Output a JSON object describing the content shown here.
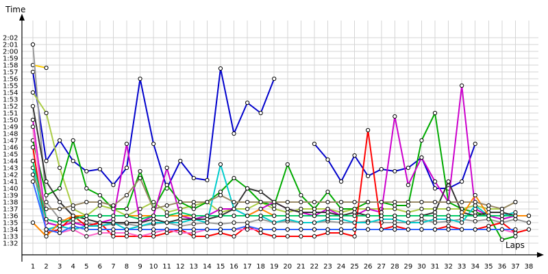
{
  "chart_data": {
    "type": "line",
    "title": "",
    "ylabel": "Time",
    "xlabel": "Laps",
    "ylim": [
      92,
      122
    ],
    "xlim": [
      1,
      38
    ],
    "x_ticks": [
      1,
      2,
      3,
      4,
      5,
      6,
      7,
      8,
      9,
      10,
      11,
      12,
      13,
      14,
      15,
      16,
      17,
      18,
      19,
      20,
      21,
      22,
      23,
      24,
      25,
      26,
      27,
      28,
      29,
      30,
      31,
      32,
      33,
      34,
      35,
      36,
      37,
      38
    ],
    "x_tick_labels": [
      "1",
      "2",
      "3",
      "4",
      "5",
      "6",
      "7",
      "8",
      "9",
      "10",
      "11",
      "12",
      "13",
      "14",
      "15",
      "16",
      "17",
      "18",
      "19",
      "20",
      "21",
      "22",
      "23",
      "24",
      "25",
      "26",
      "27",
      "28",
      "29",
      "30",
      "31",
      "32",
      "33",
      "34",
      "35",
      "36",
      "37",
      "38"
    ],
    "y_ticks": [
      92,
      93,
      94,
      95,
      96,
      97,
      98,
      99,
      100,
      101,
      102,
      103,
      104,
      105,
      106,
      107,
      108,
      109,
      110,
      111,
      112,
      113,
      114,
      115,
      116,
      117,
      118,
      119,
      120,
      121,
      122
    ],
    "y_tick_labels": [
      "1:32",
      "1:33",
      "1:34",
      "1:35",
      "1:36",
      "1:37",
      "1:38",
      "1:39",
      "1:40",
      "1:41",
      "1:42",
      "1:43",
      "1:44",
      "1:45",
      "1:46",
      "1:47",
      "1:48",
      "1:49",
      "1:50",
      "1:51",
      "1:52",
      "1:53",
      "1:54",
      "1:55",
      "1:56",
      "1:57",
      "1:58",
      "1:59",
      "2:00",
      "2:01",
      "2:02"
    ],
    "grid": true,
    "series": [
      {
        "color": "#0000cc",
        "values": [
          117,
          104,
          107,
          104,
          102.5,
          102.8,
          100.5,
          103,
          116,
          106.5,
          100,
          104,
          101.5,
          101.2,
          117.5,
          108,
          112.5,
          111,
          116,
          null,
          null,
          106.5,
          104.2,
          101,
          104.8,
          101.8,
          102.8,
          102.5,
          103,
          104.5,
          100,
          100,
          101,
          106.5,
          null,
          null,
          null,
          null
        ]
      },
      {
        "color": "#ffcc00",
        "values": [
          118,
          117.6,
          null,
          null,
          null,
          null,
          null,
          null,
          null,
          null,
          null,
          null,
          null,
          null,
          null,
          null,
          null,
          null,
          null,
          null,
          null,
          null,
          null,
          null,
          null,
          null,
          null,
          null,
          null,
          null,
          null,
          null,
          null,
          null,
          null,
          null,
          null,
          null
        ]
      },
      {
        "color": "#999999",
        "values": [
          121,
          98,
          95.5,
          95,
          95,
          94.5,
          94.8,
          94.8,
          94.5,
          94.8,
          95,
          94.5,
          94.8,
          95,
          94.8,
          95,
          95,
          95.5,
          95,
          95.2,
          95,
          95,
          95.2,
          95,
          95,
          95.2,
          95,
          95,
          95,
          95.5,
          95,
          95.2,
          95.5,
          95.2,
          95.5,
          95,
          95.5,
          95
        ]
      },
      {
        "color": "#aacc44",
        "values": [
          114,
          111,
          103,
          97,
          96,
          97.5,
          97,
          96,
          97,
          98,
          96.5,
          97,
          97.5,
          98,
          96.5,
          97,
          97,
          98,
          97,
          96.5,
          97,
          97,
          97,
          96.5,
          97,
          97,
          97,
          97,
          96.5,
          97,
          97,
          97,
          97,
          97.5,
          97,
          97,
          98,
          null
        ]
      },
      {
        "color": "#00aa00",
        "values": [
          107,
          99,
          100,
          107,
          100,
          99,
          97,
          97,
          102.5,
          97,
          100.5,
          98,
          97,
          98,
          99.5,
          101.5,
          100,
          98,
          97.5,
          103.5,
          99,
          97,
          99.5,
          97,
          97,
          98,
          98,
          97.5,
          97.5,
          107,
          111,
          98,
          97,
          96.5,
          96,
          92.5,
          93,
          null
        ]
      },
      {
        "color": "#cc00cc",
        "values": [
          110,
          95,
          94.5,
          95,
          94.5,
          95,
          95.5,
          106.5,
          95,
          96,
          103,
          96,
          95.5,
          96,
          97,
          97,
          96,
          97,
          98,
          97,
          96.5,
          96,
          97,
          96,
          96,
          97,
          96.5,
          110.5,
          100.5,
          104.5,
          101,
          98,
          115,
          97,
          96,
          95.5,
          96,
          96
        ]
      },
      {
        "color": "#ff0000",
        "values": [
          106,
          93.5,
          94,
          96,
          94.5,
          95,
          93,
          93,
          93,
          93,
          93.5,
          94,
          93,
          93,
          93.5,
          93,
          94.5,
          93.5,
          93,
          93,
          93,
          93,
          93.5,
          93.5,
          93,
          108.5,
          94,
          94.5,
          94,
          94,
          94,
          94.5,
          94,
          94,
          94.5,
          95,
          93.5,
          94
        ]
      },
      {
        "color": "#00cccc",
        "values": [
          103,
          94,
          94.5,
          94,
          94.5,
          94.5,
          95,
          94,
          94.5,
          95,
          95,
          95,
          95.5,
          95,
          103.5,
          97,
          96,
          96,
          95,
          95.5,
          95,
          95,
          95.5,
          95.5,
          95,
          95,
          95.5,
          95.5,
          95,
          95,
          95.5,
          95.5,
          95,
          97.5,
          96,
          96,
          96.5,
          null
        ]
      },
      {
        "color": "#333333",
        "values": [
          112,
          101,
          98,
          96,
          95.5,
          95,
          95,
          95,
          95,
          95.5,
          95,
          95.5,
          95.5,
          95.5,
          96,
          97,
          100,
          99.5,
          98,
          97,
          96.5,
          96.5,
          96.5,
          96,
          96.5,
          96,
          96,
          96,
          96,
          96,
          96.5,
          101,
          96.5,
          96,
          96.5,
          96.5,
          96,
          null
        ]
      },
      {
        "color": "#ff66cc",
        "values": [
          109,
          94,
          93.5,
          94,
          93,
          93.5,
          93.5,
          93.5,
          93,
          93.5,
          94,
          93.5,
          93.5,
          94,
          94,
          94,
          94,
          94,
          94,
          94,
          94,
          94,
          94,
          94,
          94,
          94,
          94,
          94,
          94,
          94,
          94,
          94,
          94,
          94,
          94,
          94,
          93.5,
          null
        ]
      },
      {
        "color": "#ff8800",
        "values": [
          95,
          93,
          95,
          96,
          96,
          96,
          96,
          96,
          96,
          96,
          96,
          96,
          96,
          96,
          96,
          96,
          96,
          97,
          96,
          96,
          96,
          96,
          96,
          96,
          96,
          96,
          96,
          96,
          96,
          96,
          96,
          96,
          96,
          99,
          96,
          96,
          96,
          96
        ]
      },
      {
        "color": "#3366ff",
        "values": [
          101,
          94,
          93.5,
          94.5,
          94,
          94,
          94,
          94,
          94,
          94,
          94,
          94,
          94,
          94,
          94,
          94,
          94.5,
          94,
          94,
          94,
          94,
          94,
          94,
          94,
          94,
          94,
          94,
          94,
          94,
          94,
          94,
          94,
          94,
          94,
          94,
          94,
          94,
          null
        ]
      },
      {
        "color": "#00cc66",
        "values": [
          104,
          95.5,
          95,
          95.5,
          96,
          96,
          96,
          96,
          95.5,
          96,
          96,
          96.5,
          96,
          96,
          96,
          96,
          96,
          96,
          96,
          96,
          96,
          96,
          96,
          96,
          96,
          96,
          96,
          96,
          96,
          96,
          96,
          96,
          96,
          96,
          96,
          96,
          96,
          null
        ]
      },
      {
        "color": "#998866",
        "values": [
          102,
          97,
          97,
          97.5,
          98,
          98,
          97.5,
          99,
          101.5,
          97,
          97.5,
          98,
          98,
          98,
          99,
          98,
          98,
          98,
          98,
          98,
          98,
          98,
          98,
          98,
          98,
          98,
          98,
          98,
          98,
          98,
          98,
          98,
          98,
          98,
          97.5,
          97,
          98,
          null
        ]
      }
    ]
  }
}
